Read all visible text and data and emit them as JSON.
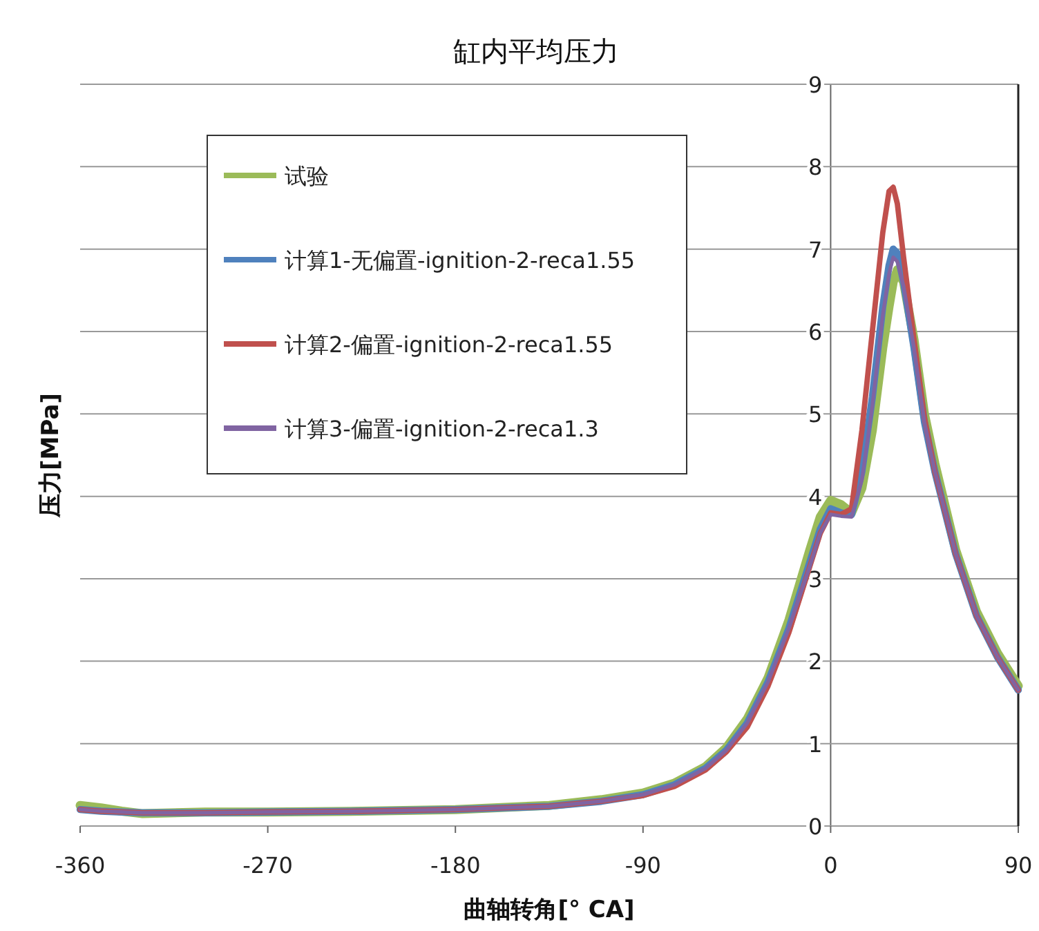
{
  "chart_data": {
    "type": "line",
    "title": "缸内平均压力",
    "xlabel": "曲轴转角[° CA]",
    "ylabel": "压力[MPa]",
    "xlim": [
      -360,
      90
    ],
    "xticks": [
      -360,
      -270,
      -180,
      -90,
      0,
      90
    ],
    "ylim": [
      0,
      9
    ],
    "yticks": [
      0,
      1,
      2,
      3,
      4,
      5,
      6,
      7,
      8,
      9
    ],
    "grid": "y",
    "legend": "top left",
    "line_style": "solid",
    "marker": "none",
    "x": [
      -360,
      -350,
      -340,
      -330,
      -300,
      -270,
      -225,
      -180,
      -135,
      -110,
      -90,
      -75,
      -60,
      -50,
      -40,
      -30,
      -20,
      -10,
      -5,
      0,
      5,
      10,
      15,
      20,
      25,
      28,
      30,
      32,
      35,
      40,
      45,
      50,
      60,
      70,
      80,
      90
    ],
    "series": [
      {
        "name": "试验",
        "color": "#9bbb59",
        "values": [
          0.25,
          0.22,
          0.18,
          0.15,
          0.17,
          0.17,
          0.18,
          0.2,
          0.25,
          0.32,
          0.4,
          0.52,
          0.72,
          0.95,
          1.3,
          1.8,
          2.5,
          3.35,
          3.75,
          3.95,
          3.9,
          3.8,
          4.1,
          4.8,
          5.8,
          6.3,
          6.6,
          6.75,
          6.6,
          5.9,
          5.0,
          4.4,
          3.35,
          2.6,
          2.1,
          1.7
        ]
      },
      {
        "name": "计算1-无偏置-ignition-2-reca1.55",
        "color": "#4f81bd",
        "values": [
          0.2,
          0.18,
          0.17,
          0.16,
          0.16,
          0.17,
          0.18,
          0.2,
          0.24,
          0.3,
          0.38,
          0.5,
          0.7,
          0.92,
          1.25,
          1.75,
          2.4,
          3.2,
          3.6,
          3.85,
          3.8,
          3.78,
          4.3,
          5.2,
          6.3,
          6.8,
          7.0,
          6.95,
          6.6,
          5.8,
          4.9,
          4.3,
          3.3,
          2.55,
          2.05,
          1.65
        ]
      },
      {
        "name": "计算2-偏置-ignition-2-reca1.55",
        "color": "#c0504d",
        "values": [
          0.2,
          0.18,
          0.17,
          0.16,
          0.16,
          0.17,
          0.18,
          0.2,
          0.24,
          0.3,
          0.37,
          0.48,
          0.68,
          0.9,
          1.2,
          1.7,
          2.35,
          3.15,
          3.55,
          3.8,
          3.78,
          3.85,
          4.8,
          6.0,
          7.2,
          7.7,
          7.75,
          7.55,
          6.9,
          5.9,
          4.95,
          4.3,
          3.3,
          2.55,
          2.05,
          1.65
        ]
      },
      {
        "name": "计算3-偏置-ignition-2-reca1.3",
        "color": "#8064a2",
        "values": [
          0.2,
          0.18,
          0.17,
          0.16,
          0.16,
          0.17,
          0.18,
          0.2,
          0.24,
          0.3,
          0.38,
          0.5,
          0.7,
          0.92,
          1.25,
          1.75,
          2.4,
          3.15,
          3.55,
          3.78,
          3.76,
          3.75,
          4.2,
          5.1,
          6.2,
          6.7,
          6.9,
          6.85,
          6.55,
          5.8,
          4.9,
          4.3,
          3.3,
          2.55,
          2.05,
          1.65
        ]
      }
    ]
  }
}
